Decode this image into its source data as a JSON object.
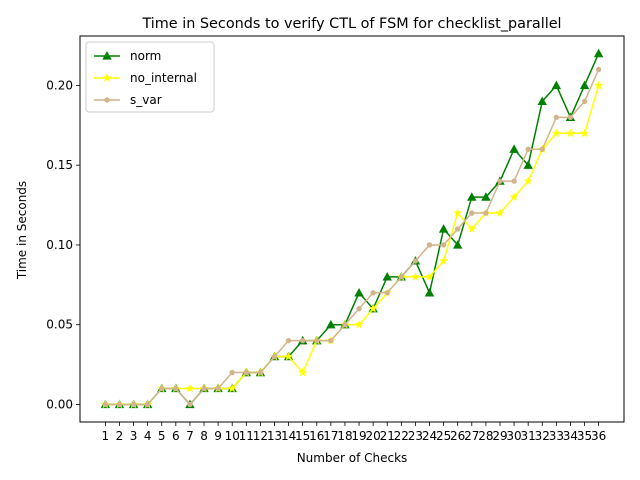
{
  "chart_data": {
    "type": "line",
    "title": "Time in Seconds to verify CTL of FSM for checklist_parallel",
    "xlabel": "Number of Checks",
    "ylabel": "Time in Seconds",
    "x": [
      1,
      2,
      3,
      4,
      5,
      6,
      7,
      8,
      9,
      10,
      11,
      12,
      13,
      14,
      15,
      16,
      17,
      18,
      19,
      20,
      21,
      22,
      23,
      24,
      25,
      26,
      27,
      28,
      29,
      30,
      31,
      32,
      33,
      34,
      35,
      36
    ],
    "xlim": [
      -0.8,
      37.8
    ],
    "ylim": [
      -0.011,
      0.231
    ],
    "yticks": [
      0.0,
      0.05,
      0.1,
      0.15,
      0.2
    ],
    "ytick_labels": [
      "0.00",
      "0.05",
      "0.10",
      "0.15",
      "0.20"
    ],
    "grid": false,
    "legend_position": "upper-left",
    "series": [
      {
        "name": "norm",
        "color": "#008000",
        "marker": "triangle",
        "values": [
          0.0,
          0.0,
          0.0,
          0.0,
          0.01,
          0.01,
          0.0,
          0.01,
          0.01,
          0.01,
          0.02,
          0.02,
          0.03,
          0.03,
          0.04,
          0.04,
          0.05,
          0.05,
          0.07,
          0.06,
          0.08,
          0.08,
          0.09,
          0.07,
          0.11,
          0.1,
          0.13,
          0.13,
          0.14,
          0.16,
          0.15,
          0.19,
          0.2,
          0.18,
          0.2,
          0.22
        ]
      },
      {
        "name": "no_internal",
        "color": "#ffff00",
        "marker": "star",
        "values": [
          0.0,
          0.0,
          0.0,
          0.0,
          0.01,
          0.01,
          0.01,
          0.01,
          0.01,
          0.01,
          0.02,
          0.02,
          0.03,
          0.03,
          0.02,
          0.04,
          0.04,
          0.05,
          0.05,
          0.06,
          0.07,
          0.08,
          0.08,
          0.08,
          0.09,
          0.12,
          0.11,
          0.12,
          0.12,
          0.13,
          0.14,
          0.16,
          0.17,
          0.17,
          0.17,
          0.2
        ]
      },
      {
        "name": "s_var",
        "color": "#d2b48c",
        "marker": "dot",
        "values": [
          0.0,
          0.0,
          0.0,
          0.0,
          0.01,
          0.01,
          0.0,
          0.01,
          0.01,
          0.02,
          0.02,
          0.02,
          0.03,
          0.04,
          0.04,
          0.04,
          0.04,
          0.05,
          0.06,
          0.07,
          0.07,
          0.08,
          0.09,
          0.1,
          0.1,
          0.11,
          0.12,
          0.12,
          0.14,
          0.14,
          0.16,
          0.16,
          0.18,
          0.18,
          0.19,
          0.21
        ]
      }
    ]
  }
}
